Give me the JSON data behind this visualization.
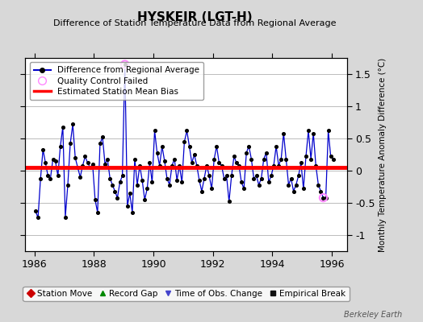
{
  "title": "HYSKEIR (LGT-H)",
  "subtitle": "Difference of Station Temperature Data from Regional Average",
  "ylabel": "Monthly Temperature Anomaly Difference (°C)",
  "bias_value": 0.05,
  "ylim": [
    -1.25,
    1.75
  ],
  "xlim": [
    1985.7,
    1996.5
  ],
  "xticks": [
    1986,
    1988,
    1990,
    1992,
    1994,
    1996
  ],
  "yticks_right": [
    -1.0,
    -0.5,
    0.0,
    0.5,
    1.0,
    1.5
  ],
  "background_color": "#d8d8d8",
  "plot_bg_color": "#ffffff",
  "grid_color": "#bbbbbb",
  "line_color": "#0000cc",
  "marker_color": "#000000",
  "bias_line_color": "#ff0000",
  "qc_fail_color": "#ff88ff",
  "watermark": "Berkeley Earth",
  "time_series": [
    [
      1986.042,
      -0.63
    ],
    [
      1986.125,
      -0.73
    ],
    [
      1986.208,
      -0.13
    ],
    [
      1986.292,
      0.33
    ],
    [
      1986.375,
      0.12
    ],
    [
      1986.458,
      -0.08
    ],
    [
      1986.542,
      -0.12
    ],
    [
      1986.625,
      0.18
    ],
    [
      1986.708,
      0.15
    ],
    [
      1986.792,
      -0.08
    ],
    [
      1986.875,
      0.38
    ],
    [
      1986.958,
      0.68
    ],
    [
      1987.042,
      -0.72
    ],
    [
      1987.125,
      -0.22
    ],
    [
      1987.208,
      0.42
    ],
    [
      1987.292,
      0.72
    ],
    [
      1987.375,
      0.2
    ],
    [
      1987.458,
      0.05
    ],
    [
      1987.542,
      -0.1
    ],
    [
      1987.625,
      0.08
    ],
    [
      1987.708,
      0.22
    ],
    [
      1987.792,
      0.12
    ],
    [
      1987.875,
      0.05
    ],
    [
      1987.958,
      0.1
    ],
    [
      1988.042,
      -0.45
    ],
    [
      1988.125,
      -0.65
    ],
    [
      1988.208,
      0.42
    ],
    [
      1988.292,
      0.52
    ],
    [
      1988.375,
      0.1
    ],
    [
      1988.458,
      0.18
    ],
    [
      1988.542,
      -0.12
    ],
    [
      1988.625,
      -0.22
    ],
    [
      1988.708,
      -0.32
    ],
    [
      1988.792,
      -0.42
    ],
    [
      1988.875,
      -0.18
    ],
    [
      1988.958,
      -0.08
    ],
    [
      1989.042,
      1.65
    ],
    [
      1989.125,
      -0.55
    ],
    [
      1989.208,
      -0.35
    ],
    [
      1989.292,
      -0.65
    ],
    [
      1989.375,
      0.18
    ],
    [
      1989.458,
      -0.22
    ],
    [
      1989.542,
      0.08
    ],
    [
      1989.625,
      -0.15
    ],
    [
      1989.708,
      -0.45
    ],
    [
      1989.792,
      -0.28
    ],
    [
      1989.875,
      0.12
    ],
    [
      1989.958,
      -0.18
    ],
    [
      1990.042,
      0.62
    ],
    [
      1990.125,
      0.28
    ],
    [
      1990.208,
      0.08
    ],
    [
      1990.292,
      0.38
    ],
    [
      1990.375,
      0.15
    ],
    [
      1990.458,
      -0.12
    ],
    [
      1990.542,
      -0.22
    ],
    [
      1990.625,
      0.08
    ],
    [
      1990.708,
      0.18
    ],
    [
      1990.792,
      -0.15
    ],
    [
      1990.875,
      0.08
    ],
    [
      1990.958,
      -0.18
    ],
    [
      1991.042,
      0.45
    ],
    [
      1991.125,
      0.62
    ],
    [
      1991.208,
      0.38
    ],
    [
      1991.292,
      0.12
    ],
    [
      1991.375,
      0.25
    ],
    [
      1991.458,
      0.08
    ],
    [
      1991.542,
      -0.15
    ],
    [
      1991.625,
      -0.32
    ],
    [
      1991.708,
      -0.12
    ],
    [
      1991.792,
      0.08
    ],
    [
      1991.875,
      -0.08
    ],
    [
      1991.958,
      -0.28
    ],
    [
      1992.042,
      0.18
    ],
    [
      1992.125,
      0.38
    ],
    [
      1992.208,
      0.12
    ],
    [
      1992.292,
      0.08
    ],
    [
      1992.375,
      -0.12
    ],
    [
      1992.458,
      -0.08
    ],
    [
      1992.542,
      -0.48
    ],
    [
      1992.625,
      -0.08
    ],
    [
      1992.708,
      0.22
    ],
    [
      1992.792,
      0.12
    ],
    [
      1992.875,
      0.08
    ],
    [
      1992.958,
      -0.18
    ],
    [
      1993.042,
      -0.28
    ],
    [
      1993.125,
      0.28
    ],
    [
      1993.208,
      0.38
    ],
    [
      1993.292,
      0.18
    ],
    [
      1993.375,
      -0.12
    ],
    [
      1993.458,
      -0.08
    ],
    [
      1993.542,
      -0.22
    ],
    [
      1993.625,
      -0.12
    ],
    [
      1993.708,
      0.18
    ],
    [
      1993.792,
      0.28
    ],
    [
      1993.875,
      -0.18
    ],
    [
      1993.958,
      -0.08
    ],
    [
      1994.042,
      0.08
    ],
    [
      1994.125,
      0.38
    ],
    [
      1994.208,
      0.08
    ],
    [
      1994.292,
      0.18
    ],
    [
      1994.375,
      0.58
    ],
    [
      1994.458,
      0.18
    ],
    [
      1994.542,
      -0.22
    ],
    [
      1994.625,
      -0.12
    ],
    [
      1994.708,
      -0.32
    ],
    [
      1994.792,
      -0.22
    ],
    [
      1994.875,
      -0.08
    ],
    [
      1994.958,
      0.12
    ],
    [
      1995.042,
      -0.28
    ],
    [
      1995.125,
      0.22
    ],
    [
      1995.208,
      0.62
    ],
    [
      1995.292,
      0.18
    ],
    [
      1995.375,
      0.58
    ],
    [
      1995.458,
      0.08
    ],
    [
      1995.542,
      -0.22
    ],
    [
      1995.625,
      -0.32
    ],
    [
      1995.708,
      -0.42
    ],
    [
      1995.792,
      -0.42
    ],
    [
      1995.875,
      0.62
    ],
    [
      1995.958,
      0.22
    ],
    [
      1996.042,
      0.18
    ]
  ],
  "qc_fail_points": [
    [
      1989.042,
      1.65
    ],
    [
      1995.708,
      -0.42
    ]
  ],
  "bottom_legend": [
    {
      "label": "Station Move",
      "marker": "D",
      "color": "#cc0000"
    },
    {
      "label": "Record Gap",
      "marker": "^",
      "color": "#008800"
    },
    {
      "label": "Time of Obs. Change",
      "marker": "v",
      "color": "#4444cc"
    },
    {
      "label": "Empirical Break",
      "marker": "s",
      "color": "#111111"
    }
  ]
}
